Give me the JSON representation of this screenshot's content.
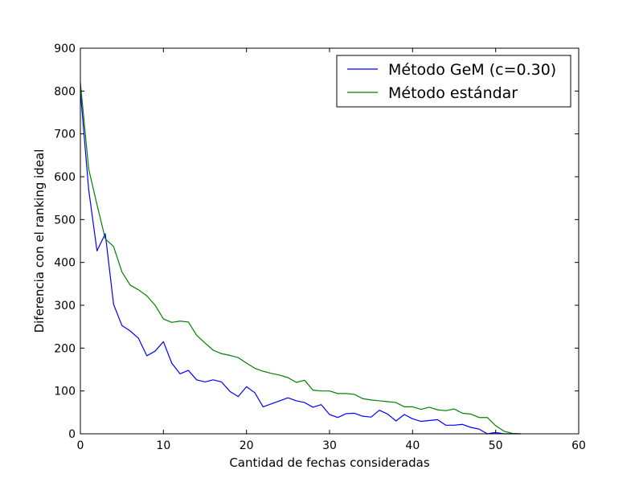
{
  "chart_data": {
    "type": "line",
    "xlabel": "Cantidad de fechas consideradas",
    "ylabel": "Diferencia con el ranking ideal",
    "xlim": [
      0,
      60
    ],
    "ylim": [
      0,
      900
    ],
    "xticks": [
      0,
      10,
      20,
      30,
      40,
      50,
      60
    ],
    "yticks": [
      0,
      100,
      200,
      300,
      400,
      500,
      600,
      700,
      800,
      900
    ],
    "grid": false,
    "legend_position": "top-right",
    "series": [
      {
        "name": "Método GeM (c=0.30)",
        "color": "#0000ff",
        "x": [
          0,
          1,
          2,
          3,
          4,
          5,
          6,
          7,
          8,
          9,
          10,
          11,
          12,
          13,
          14,
          15,
          16,
          17,
          18,
          19,
          20,
          21,
          22,
          23,
          24,
          25,
          26,
          27,
          28,
          29,
          30,
          31,
          32,
          33,
          34,
          35,
          36,
          37,
          38,
          39,
          40,
          41,
          42,
          43,
          44,
          45,
          46,
          47,
          48,
          49,
          50,
          51,
          52,
          53
        ],
        "values": [
          800,
          570,
          427,
          467,
          302,
          253,
          240,
          223,
          182,
          193,
          215,
          165,
          140,
          148,
          126,
          121,
          126,
          121,
          99,
          87,
          110,
          96,
          63,
          70,
          77,
          84,
          77,
          73,
          62,
          68,
          45,
          38,
          47,
          48,
          41,
          39,
          55,
          46,
          30,
          45,
          35,
          29,
          31,
          33,
          20,
          20,
          22,
          15,
          11,
          0,
          3,
          0,
          0,
          0
        ]
      },
      {
        "name": "Método estándar",
        "color": "#008000",
        "x": [
          0,
          1,
          2,
          3,
          4,
          5,
          6,
          7,
          8,
          9,
          10,
          11,
          12,
          13,
          14,
          15,
          16,
          17,
          18,
          19,
          20,
          21,
          22,
          23,
          24,
          25,
          26,
          27,
          28,
          29,
          30,
          31,
          32,
          33,
          34,
          35,
          36,
          37,
          38,
          39,
          40,
          41,
          42,
          43,
          44,
          45,
          46,
          47,
          48,
          49,
          50,
          51,
          52,
          53
        ],
        "values": [
          820,
          618,
          535,
          455,
          437,
          378,
          347,
          336,
          322,
          300,
          268,
          260,
          263,
          261,
          230,
          212,
          195,
          187,
          183,
          178,
          165,
          153,
          146,
          141,
          137,
          131,
          120,
          125,
          102,
          100,
          100,
          94,
          94,
          92,
          82,
          79,
          77,
          75,
          73,
          63,
          63,
          57,
          62,
          56,
          54,
          58,
          48,
          46,
          38,
          38,
          19,
          6,
          1,
          0
        ]
      }
    ]
  }
}
